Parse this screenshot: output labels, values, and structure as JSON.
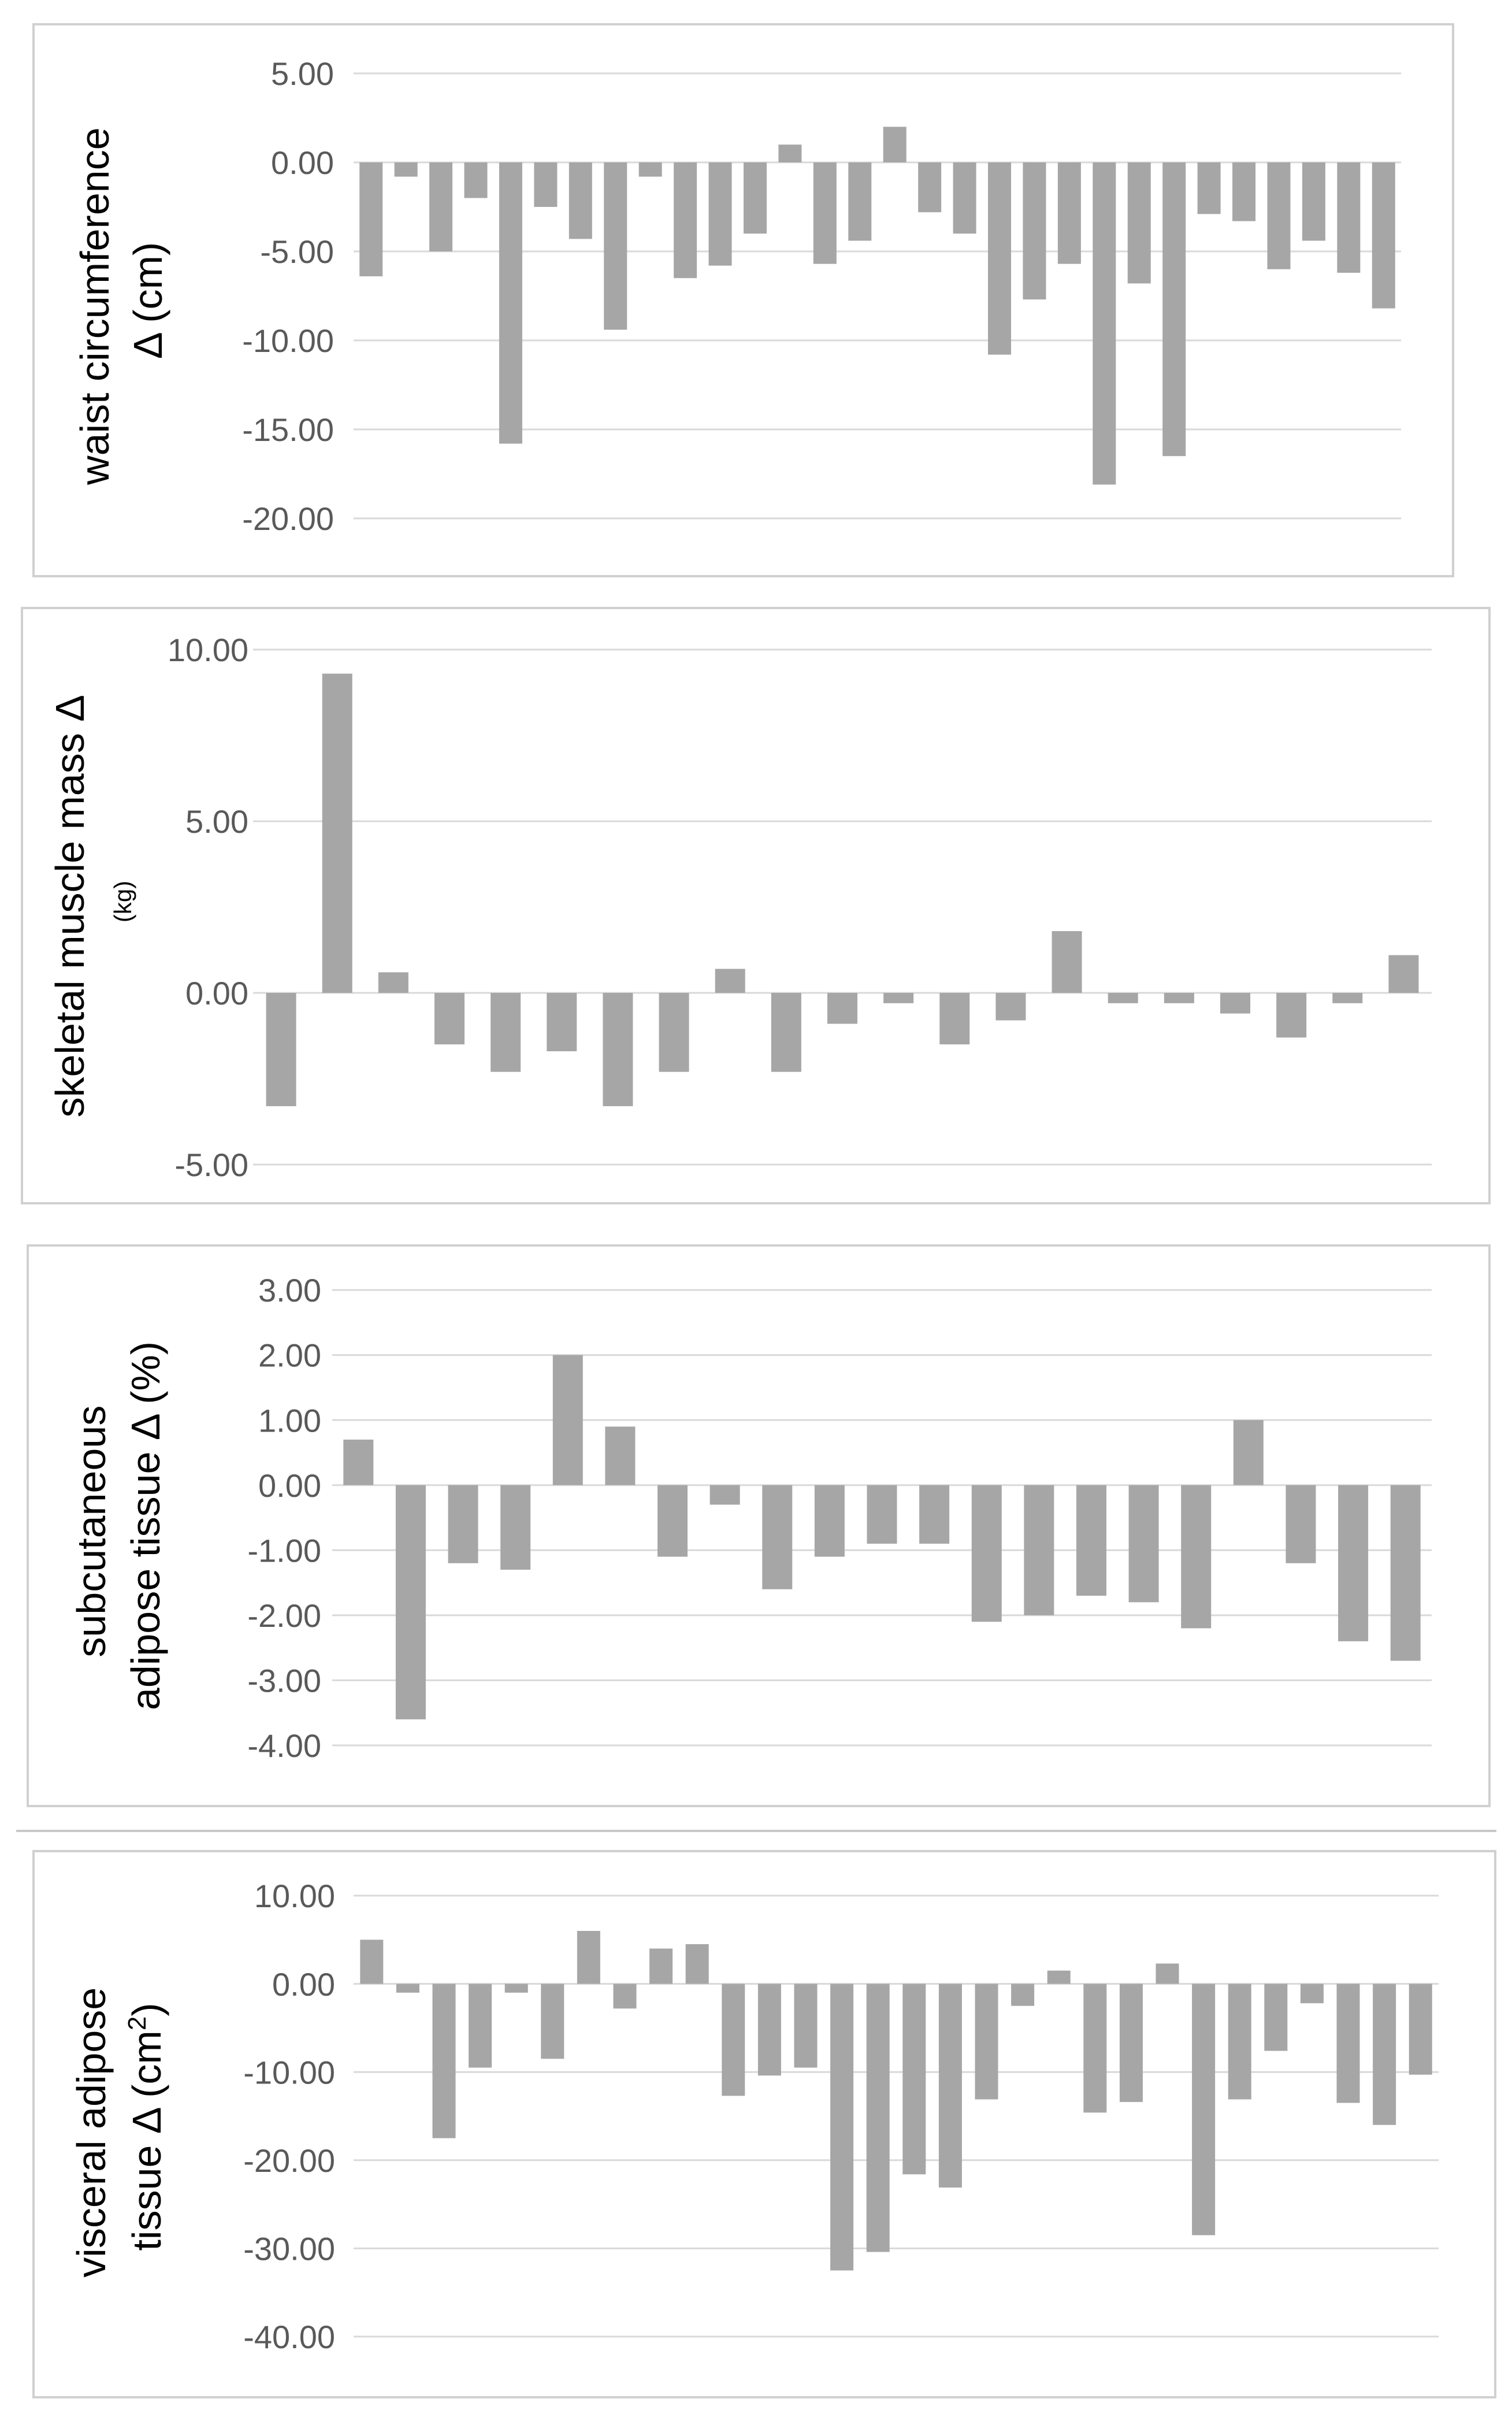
{
  "colors": {
    "bar": "#a6a6a6",
    "grid": "#d9d9d9",
    "frame": "#d0d0d0",
    "tick_text": "#595959",
    "label_text": "#000000"
  },
  "chart_data": [
    {
      "type": "bar",
      "title": "",
      "xlabel": "",
      "ylabel": "waist circumference Δ (cm)",
      "ylabel_lines": [
        "waist circumference",
        "Δ (cm)"
      ],
      "ylim": [
        -20,
        5
      ],
      "yticks": [
        5,
        0,
        -5,
        -10,
        -15,
        -20
      ],
      "ytick_labels": [
        "5.00",
        "0.00",
        "-5.00",
        "-10.00",
        "-15.00",
        "-20.00"
      ],
      "grid": true,
      "values": [
        -6.4,
        -0.8,
        -5.0,
        -2.0,
        -15.8,
        -2.5,
        -4.3,
        -9.4,
        -0.8,
        -6.5,
        -5.8,
        -4.0,
        1.0,
        -5.7,
        -4.4,
        2.0,
        -2.8,
        -4.0,
        -10.8,
        -7.7,
        -5.7,
        -18.1,
        -6.8,
        -16.5,
        -2.9,
        -3.3,
        -6.0,
        -4.4,
        -6.2,
        -8.2
      ]
    },
    {
      "type": "bar",
      "title": "",
      "xlabel": "",
      "ylabel": "skeletal muscle mass Δ (kg)",
      "ylabel_lines": [
        "skeletal muscle mass Δ",
        "(kg)"
      ],
      "ylim": [
        -5,
        10
      ],
      "yticks": [
        10,
        5,
        0,
        -5
      ],
      "ytick_labels": [
        "10.00",
        "5.00",
        "0.00",
        "-5.00"
      ],
      "grid": true,
      "values": [
        -3.3,
        9.3,
        0.6,
        -1.5,
        -2.3,
        -1.7,
        -3.3,
        -2.3,
        0.7,
        -2.3,
        -0.9,
        -0.3,
        -1.5,
        -0.8,
        1.8,
        -0.3,
        -0.3,
        -0.6,
        -1.3,
        -0.3,
        1.1
      ]
    },
    {
      "type": "bar",
      "title": "",
      "xlabel": "",
      "ylabel": "subcutaneous adipose tissue Δ (%)",
      "ylabel_lines": [
        "subcutaneous",
        "adipose tissue Δ (%)"
      ],
      "ylim": [
        -4,
        3
      ],
      "yticks": [
        3,
        2,
        1,
        0,
        -1,
        -2,
        -3,
        -4
      ],
      "ytick_labels": [
        "3.00",
        "2.00",
        "1.00",
        "0.00",
        "-1.00",
        "-2.00",
        "-3.00",
        "-4.00"
      ],
      "grid": true,
      "values": [
        0.7,
        -3.6,
        -1.2,
        -1.3,
        2.0,
        0.9,
        -1.1,
        -0.3,
        -1.6,
        -1.1,
        -0.9,
        -0.9,
        -2.1,
        -2.0,
        -1.7,
        -1.8,
        -2.2,
        1.0,
        -1.2,
        -2.4,
        -2.7
      ]
    },
    {
      "type": "bar",
      "title": "",
      "xlabel": "",
      "ylabel": "visceral adipose tissue Δ (cm2)",
      "ylabel_lines": [
        "visceral adipose",
        "tissue Δ (cm",
        "2",
        ")"
      ],
      "ylim": [
        -40,
        10
      ],
      "yticks": [
        10,
        0,
        -10,
        -20,
        -30,
        -40
      ],
      "ytick_labels": [
        "10.00",
        "0.00",
        "-10.00",
        "-20.00",
        "-30.00",
        "-40.00"
      ],
      "grid": true,
      "values": [
        5.0,
        -1.0,
        -17.5,
        -9.5,
        -1.0,
        -8.5,
        6.0,
        -2.8,
        4.0,
        4.5,
        -12.7,
        -10.4,
        -9.5,
        -32.5,
        -30.4,
        -21.6,
        -23.1,
        -13.1,
        -2.5,
        1.5,
        -14.6,
        -13.4,
        2.3,
        -28.5,
        -13.1,
        -7.6,
        -2.2,
        -13.5,
        -16.0,
        -10.3
      ]
    }
  ]
}
